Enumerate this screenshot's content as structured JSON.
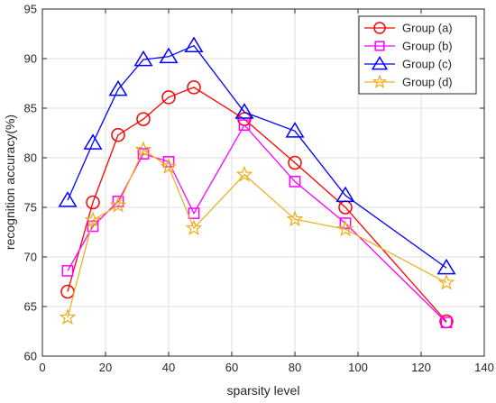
{
  "chart_data": {
    "type": "line",
    "xlabel": "sparsity level",
    "ylabel": "recognition accuracy(%)",
    "xlim": [
      0,
      140
    ],
    "ylim": [
      60,
      95
    ],
    "xticks": [
      0,
      20,
      40,
      60,
      80,
      100,
      120,
      140
    ],
    "yticks": [
      60,
      65,
      70,
      75,
      80,
      85,
      90,
      95
    ],
    "grid": true,
    "legend_position": "top-right",
    "x": [
      8,
      16,
      24,
      32,
      40,
      48,
      64,
      80,
      96,
      128
    ],
    "series": [
      {
        "name": "Group (a)",
        "color": "#ff0000",
        "marker": "circle",
        "values": [
          66.5,
          75.5,
          82.3,
          83.9,
          86.1,
          87.1,
          83.9,
          79.5,
          75.0,
          63.5
        ]
      },
      {
        "name": "Group (b)",
        "color": "#ff00ff",
        "marker": "square",
        "values": [
          68.6,
          73.1,
          75.6,
          80.4,
          79.6,
          74.4,
          83.3,
          77.6,
          73.4,
          63.4
        ]
      },
      {
        "name": "Group (c)",
        "color": "#0000ff",
        "marker": "triangle",
        "values": [
          75.7,
          81.5,
          86.9,
          89.9,
          90.2,
          91.3,
          84.6,
          82.7,
          76.2,
          68.9
        ]
      },
      {
        "name": "Group (d)",
        "color": "#edb120",
        "marker": "star",
        "values": [
          63.9,
          73.7,
          75.2,
          80.8,
          79.1,
          72.9,
          78.3,
          73.8,
          72.8,
          67.4
        ]
      }
    ]
  }
}
